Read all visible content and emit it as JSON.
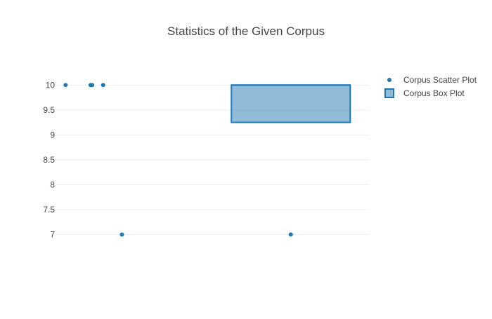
{
  "chart_data": {
    "type": "scatter+box",
    "title": "Statistics of the Given Corpus",
    "xlabel": "",
    "ylabel": "",
    "ylim": [
      6.5,
      10.3
    ],
    "y_ticks": [
      10,
      9.5,
      9,
      8.5,
      8,
      7.5,
      7
    ],
    "y_tick_labels": [
      "10",
      "9.5",
      "9",
      "8.5",
      "8",
      "7.5",
      "7"
    ],
    "grid": true,
    "legend_position": "top-right",
    "series": [
      {
        "name": "Corpus Scatter Plot",
        "kind": "scatter",
        "color": "#1f77b4",
        "y": [
          10,
          10,
          10,
          10,
          7
        ],
        "jitter": [
          -0.44,
          -0.28,
          -0.27,
          -0.2,
          -0.08
        ]
      },
      {
        "name": "Corpus Box Plot",
        "kind": "box",
        "color": "#1f77b4",
        "fill": "rgba(31,119,180,0.5)",
        "q1": 9.25,
        "median": 10,
        "q3": 10,
        "whisker_low": 9.25,
        "whisker_high": 10,
        "outliers": [
          7
        ]
      }
    ]
  }
}
